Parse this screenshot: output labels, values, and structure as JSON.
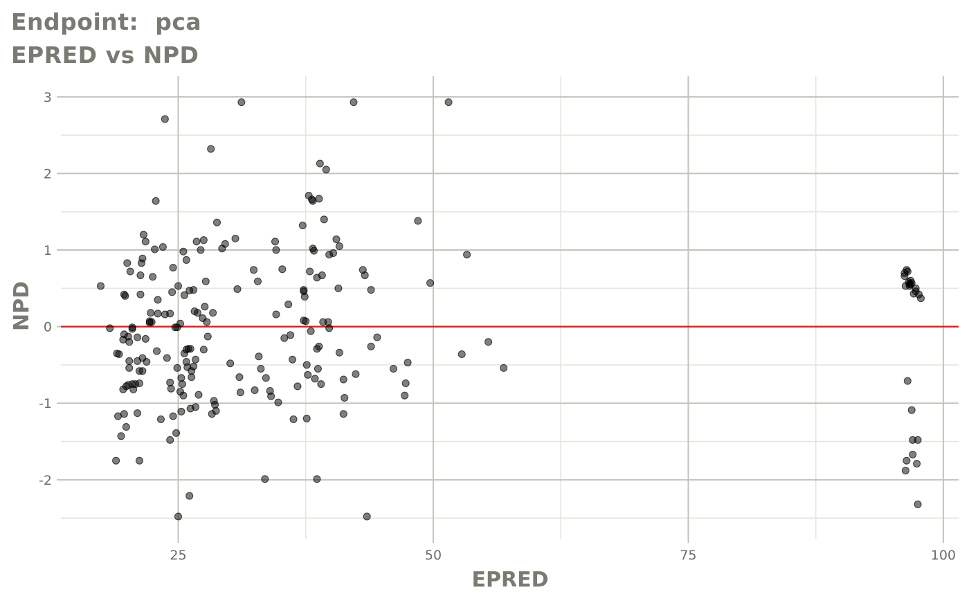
{
  "chart_data": {
    "type": "scatter",
    "title": "Endpoint:  pca",
    "subtitle": "EPRED vs NPD",
    "xlabel": "EPRED",
    "ylabel": "NPD",
    "xlim": [
      13.5,
      101.5
    ],
    "ylim": [
      -2.77,
      3.27
    ],
    "x_ticks": [
      25,
      50,
      75,
      100
    ],
    "x_tick_labels": [
      "25",
      "50",
      "75",
      "100"
    ],
    "y_ticks": [
      -2,
      -1,
      0,
      1,
      2,
      3
    ],
    "y_tick_labels": [
      "-2",
      "-1",
      "0",
      "1",
      "2",
      "3"
    ],
    "grid": true,
    "reference_line": {
      "y": 0,
      "color": "#e31a1c"
    },
    "point_color": "#000000",
    "points": [
      [
        17.4,
        0.53
      ],
      [
        18.3,
        -0.02
      ],
      [
        18.9,
        -1.75
      ],
      [
        19.1,
        -1.17
      ],
      [
        19.0,
        -0.35
      ],
      [
        19.2,
        -0.36
      ],
      [
        19.4,
        -1.43
      ],
      [
        19.6,
        -0.17
      ],
      [
        19.6,
        -0.82
      ],
      [
        19.7,
        -1.14
      ],
      [
        19.7,
        -0.1
      ],
      [
        19.7,
        0.42
      ],
      [
        19.8,
        0.4
      ],
      [
        19.9,
        -0.78
      ],
      [
        19.9,
        -1.31
      ],
      [
        20.0,
        0.83
      ],
      [
        20.1,
        -0.76
      ],
      [
        20.1,
        -0.13
      ],
      [
        20.2,
        -0.2
      ],
      [
        20.2,
        -0.54
      ],
      [
        20.2,
        -0.45
      ],
      [
        20.3,
        0.72
      ],
      [
        20.5,
        -0.03
      ],
      [
        20.5,
        -0.01
      ],
      [
        20.5,
        -0.75
      ],
      [
        20.6,
        -0.82
      ],
      [
        20.8,
        -0.75
      ],
      [
        21.0,
        -0.14
      ],
      [
        21.0,
        -0.45
      ],
      [
        21.0,
        -1.13
      ],
      [
        21.2,
        -1.75
      ],
      [
        21.2,
        -0.74
      ],
      [
        21.2,
        -0.58
      ],
      [
        21.3,
        0.42
      ],
      [
        21.3,
        0.67
      ],
      [
        21.4,
        0.83
      ],
      [
        21.5,
        0.89
      ],
      [
        21.5,
        -0.41
      ],
      [
        21.5,
        -0.58
      ],
      [
        21.6,
        1.2
      ],
      [
        21.8,
        1.11
      ],
      [
        21.8,
        -0.16
      ],
      [
        21.9,
        -0.46
      ],
      [
        22.2,
        0.05
      ],
      [
        22.2,
        0.07
      ],
      [
        22.3,
        0.18
      ],
      [
        22.4,
        0.06
      ],
      [
        22.5,
        0.65
      ],
      [
        22.7,
        1.01
      ],
      [
        22.8,
        1.64
      ],
      [
        22.9,
        -0.32
      ],
      [
        23.0,
        0.35
      ],
      [
        23.0,
        0.17
      ],
      [
        23.3,
        -1.21
      ],
      [
        23.5,
        1.04
      ],
      [
        23.7,
        2.71
      ],
      [
        23.7,
        0.16
      ],
      [
        23.9,
        -0.41
      ],
      [
        24.2,
        0.17
      ],
      [
        24.2,
        -0.73
      ],
      [
        24.2,
        -1.48
      ],
      [
        24.3,
        -0.81
      ],
      [
        24.4,
        0.45
      ],
      [
        24.5,
        -1.17
      ],
      [
        24.5,
        0.77
      ],
      [
        24.7,
        -0.01
      ],
      [
        24.8,
        -1.39
      ],
      [
        24.9,
        -0.01
      ],
      [
        24.9,
        -0.54
      ],
      [
        25.0,
        0.53
      ],
      [
        25.0,
        -2.48
      ],
      [
        25.2,
        0.04
      ],
      [
        25.2,
        -0.85
      ],
      [
        25.3,
        -1.11
      ],
      [
        25.3,
        -0.67
      ],
      [
        25.4,
        -0.75
      ],
      [
        25.5,
        0.98
      ],
      [
        25.5,
        -0.9
      ],
      [
        25.6,
        0.41
      ],
      [
        25.6,
        -0.35
      ],
      [
        25.8,
        -0.3
      ],
      [
        25.8,
        -0.46
      ],
      [
        25.8,
        0.87
      ],
      [
        25.9,
        -0.53
      ],
      [
        26.0,
        -0.29
      ],
      [
        26.1,
        0.47
      ],
      [
        26.1,
        -2.21
      ],
      [
        26.2,
        -1.07
      ],
      [
        26.2,
        -0.29
      ],
      [
        26.3,
        -0.58
      ],
      [
        26.3,
        -0.66
      ],
      [
        26.5,
        0.48
      ],
      [
        26.5,
        -0.52
      ],
      [
        26.6,
        0.2
      ],
      [
        26.7,
        -1.05
      ],
      [
        26.7,
        -0.43
      ],
      [
        26.8,
        1.11
      ],
      [
        26.9,
        0.18
      ],
      [
        27.0,
        -0.89
      ],
      [
        27.2,
        1.0
      ],
      [
        27.4,
        0.11
      ],
      [
        27.5,
        1.13
      ],
      [
        27.5,
        -0.3
      ],
      [
        27.6,
        0.26
      ],
      [
        27.7,
        0.59
      ],
      [
        27.8,
        0.06
      ],
      [
        27.9,
        -0.13
      ],
      [
        28.2,
        2.32
      ],
      [
        28.3,
        -1.14
      ],
      [
        28.4,
        0.18
      ],
      [
        28.5,
        -0.97
      ],
      [
        28.6,
        -1.02
      ],
      [
        28.7,
        -1.1
      ],
      [
        28.8,
        1.36
      ],
      [
        29.3,
        1.02
      ],
      [
        29.6,
        1.08
      ],
      [
        30.1,
        -0.48
      ],
      [
        30.6,
        1.15
      ],
      [
        30.8,
        0.49
      ],
      [
        31.0,
        -0.66
      ],
      [
        31.1,
        -0.86
      ],
      [
        31.2,
        2.93
      ],
      [
        32.4,
        0.74
      ],
      [
        32.5,
        -0.83
      ],
      [
        32.8,
        0.59
      ],
      [
        32.9,
        -0.39
      ],
      [
        33.1,
        -0.55
      ],
      [
        33.5,
        -1.99
      ],
      [
        33.6,
        -0.67
      ],
      [
        34.0,
        -0.84
      ],
      [
        34.1,
        -0.91
      ],
      [
        34.5,
        1.11
      ],
      [
        34.6,
        1.0
      ],
      [
        34.6,
        0.16
      ],
      [
        34.8,
        -0.99
      ],
      [
        35.2,
        0.75
      ],
      [
        35.4,
        -0.15
      ],
      [
        35.8,
        0.29
      ],
      [
        36.0,
        -0.11
      ],
      [
        36.2,
        -0.43
      ],
      [
        36.3,
        -1.21
      ],
      [
        36.7,
        -0.78
      ],
      [
        37.2,
        1.32
      ],
      [
        37.3,
        0.48
      ],
      [
        37.3,
        0.46
      ],
      [
        37.3,
        0.08
      ],
      [
        37.4,
        0.39
      ],
      [
        37.5,
        0.07
      ],
      [
        37.6,
        -0.5
      ],
      [
        37.6,
        -1.2
      ],
      [
        37.7,
        -0.63
      ],
      [
        37.8,
        1.71
      ],
      [
        37.9,
        0.72
      ],
      [
        38.0,
        -0.06
      ],
      [
        38.1,
        1.66
      ],
      [
        38.2,
        1.64
      ],
      [
        38.2,
        1.02
      ],
      [
        38.3,
        0.99
      ],
      [
        38.4,
        -0.68
      ],
      [
        38.6,
        -1.99
      ],
      [
        38.6,
        0.64
      ],
      [
        38.6,
        -0.29
      ],
      [
        38.7,
        -0.55
      ],
      [
        38.8,
        1.67
      ],
      [
        38.8,
        -0.26
      ],
      [
        38.9,
        2.13
      ],
      [
        39.0,
        -0.75
      ],
      [
        39.1,
        0.67
      ],
      [
        39.2,
        0.06
      ],
      [
        39.3,
        1.4
      ],
      [
        39.5,
        2.05
      ],
      [
        39.7,
        0.06
      ],
      [
        39.8,
        0.94
      ],
      [
        39.8,
        -0.02
      ],
      [
        40.2,
        0.96
      ],
      [
        40.5,
        1.14
      ],
      [
        40.7,
        0.5
      ],
      [
        40.8,
        1.05
      ],
      [
        40.8,
        -0.34
      ],
      [
        41.2,
        -1.14
      ],
      [
        41.2,
        -0.69
      ],
      [
        41.3,
        -0.93
      ],
      [
        42.2,
        2.93
      ],
      [
        42.4,
        -0.62
      ],
      [
        43.5,
        -2.48
      ],
      [
        43.1,
        0.74
      ],
      [
        43.3,
        0.67
      ],
      [
        43.9,
        0.48
      ],
      [
        43.9,
        -0.26
      ],
      [
        44.5,
        -0.14
      ],
      [
        46.1,
        -0.55
      ],
      [
        47.2,
        -0.9
      ],
      [
        47.3,
        -0.74
      ],
      [
        47.5,
        -0.47
      ],
      [
        48.5,
        1.38
      ],
      [
        49.7,
        0.57
      ],
      [
        51.5,
        2.93
      ],
      [
        52.8,
        -0.36
      ],
      [
        53.3,
        0.94
      ],
      [
        55.4,
        -0.2
      ],
      [
        56.9,
        -0.54
      ],
      [
        96.2,
        0.7
      ],
      [
        96.2,
        0.66
      ],
      [
        96.3,
        0.53
      ],
      [
        96.3,
        -1.88
      ],
      [
        96.4,
        -1.75
      ],
      [
        96.4,
        0.74
      ],
      [
        96.5,
        0.72
      ],
      [
        96.5,
        -0.71
      ],
      [
        96.6,
        0.58
      ],
      [
        96.7,
        0.56
      ],
      [
        96.7,
        0.53
      ],
      [
        96.8,
        0.6
      ],
      [
        96.8,
        0.55
      ],
      [
        96.9,
        -1.09
      ],
      [
        96.9,
        0.57
      ],
      [
        97.0,
        -1.48
      ],
      [
        97.0,
        -1.67
      ],
      [
        97.1,
        0.43
      ],
      [
        97.3,
        0.5
      ],
      [
        97.3,
        0.46
      ],
      [
        97.4,
        -1.79
      ],
      [
        97.5,
        -2.32
      ],
      [
        97.5,
        -1.48
      ],
      [
        97.6,
        0.42
      ],
      [
        97.8,
        0.37
      ]
    ]
  }
}
